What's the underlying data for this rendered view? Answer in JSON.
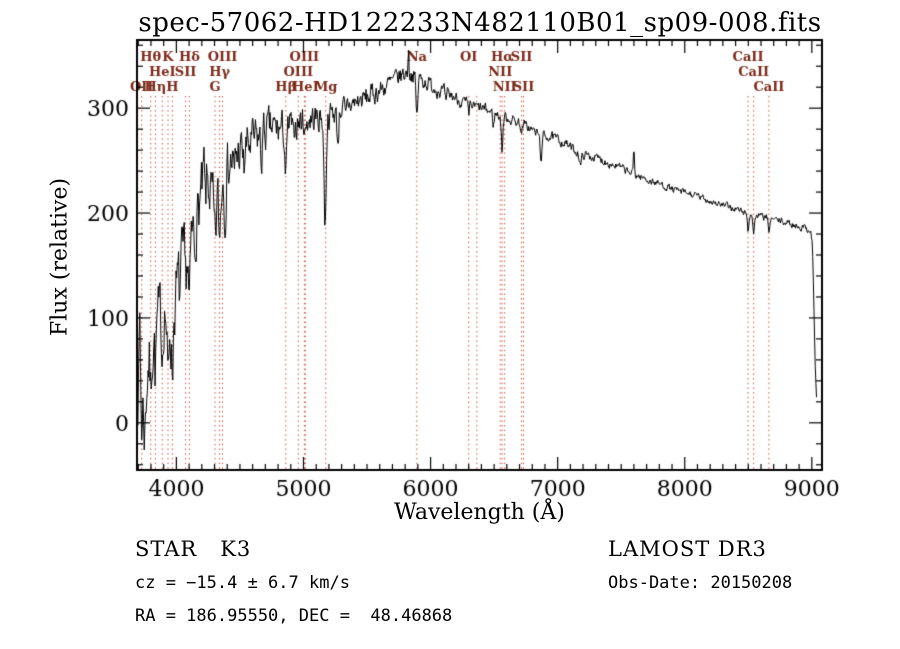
{
  "title": "spec-57062-HD122233N482110B01_sp09-008.fits",
  "footer": {
    "class_label": "STAR   K3",
    "cz": "cz = −15.4 ± 6.7 km/s",
    "radec": "RA = 186.95550, DEC =  48.46868",
    "survey": "LAMOST DR3",
    "obs_date": "Obs-Date: 20150208"
  },
  "chart_data": {
    "type": "line",
    "title": "spec-57062-HD122233N482110B01_sp09-008.fits",
    "xlabel": "Wavelength (Å)",
    "ylabel": "Flux (relative)",
    "xlim": [
      3690,
      9080
    ],
    "ylim": [
      -45,
      365
    ],
    "x_ticks": [
      4000,
      5000,
      6000,
      7000,
      8000,
      9000
    ],
    "y_ticks": [
      0,
      100,
      200,
      300
    ],
    "x_minor_step": 100,
    "y_minor_step": 20,
    "grid": false,
    "legend": "none",
    "line_color": "#000000",
    "marker_line_color": "#cc5544",
    "marker_label_color": "#7b2a1a",
    "noise_seed": 7,
    "spectrum_range": [
      3692,
      9038,
      5
    ],
    "continuum_anchors": [
      [
        3690,
        25
      ],
      [
        3710,
        45
      ],
      [
        3730,
        20
      ],
      [
        3755,
        10
      ],
      [
        3775,
        55
      ],
      [
        3800,
        65
      ],
      [
        3825,
        85
      ],
      [
        3850,
        95
      ],
      [
        3875,
        100
      ],
      [
        3900,
        110
      ],
      [
        3925,
        105
      ],
      [
        3955,
        100
      ],
      [
        3985,
        115
      ],
      [
        4010,
        130
      ],
      [
        4040,
        150
      ],
      [
        4070,
        155
      ],
      [
        4100,
        165
      ],
      [
        4130,
        180
      ],
      [
        4160,
        195
      ],
      [
        4190,
        215
      ],
      [
        4220,
        228
      ],
      [
        4250,
        228
      ],
      [
        4280,
        215
      ],
      [
        4310,
        215
      ],
      [
        4340,
        225
      ],
      [
        4370,
        235
      ],
      [
        4400,
        245
      ],
      [
        4450,
        252
      ],
      [
        4500,
        258
      ],
      [
        4550,
        262
      ],
      [
        4600,
        268
      ],
      [
        4650,
        272
      ],
      [
        4700,
        278
      ],
      [
        4750,
        280
      ],
      [
        4800,
        280
      ],
      [
        4860,
        278
      ],
      [
        4900,
        283
      ],
      [
        4950,
        286
      ],
      [
        5000,
        289
      ],
      [
        5060,
        290
      ],
      [
        5120,
        291
      ],
      [
        5180,
        292
      ],
      [
        5240,
        296
      ],
      [
        5300,
        300
      ],
      [
        5360,
        303
      ],
      [
        5420,
        306
      ],
      [
        5480,
        309
      ],
      [
        5540,
        313
      ],
      [
        5600,
        317
      ],
      [
        5660,
        322
      ],
      [
        5720,
        327
      ],
      [
        5780,
        332
      ],
      [
        5830,
        334
      ],
      [
        5890,
        330
      ],
      [
        5950,
        326
      ],
      [
        6000,
        322
      ],
      [
        6060,
        318
      ],
      [
        6120,
        314
      ],
      [
        6180,
        311
      ],
      [
        6240,
        307
      ],
      [
        6300,
        303
      ],
      [
        6360,
        301
      ],
      [
        6420,
        299
      ],
      [
        6480,
        296
      ],
      [
        6540,
        293
      ],
      [
        6600,
        291
      ],
      [
        6660,
        288
      ],
      [
        6720,
        285
      ],
      [
        6780,
        281
      ],
      [
        6840,
        276
      ],
      [
        6900,
        274
      ],
      [
        6960,
        272
      ],
      [
        7020,
        269
      ],
      [
        7080,
        265
      ],
      [
        7140,
        259
      ],
      [
        7200,
        256
      ],
      [
        7260,
        254
      ],
      [
        7320,
        252
      ],
      [
        7380,
        249
      ],
      [
        7440,
        246
      ],
      [
        7500,
        243
      ],
      [
        7560,
        239
      ],
      [
        7620,
        236
      ],
      [
        7680,
        233
      ],
      [
        7740,
        230
      ],
      [
        7800,
        228
      ],
      [
        7860,
        225
      ],
      [
        7920,
        222
      ],
      [
        7980,
        220
      ],
      [
        8040,
        218
      ],
      [
        8100,
        216
      ],
      [
        8160,
        213
      ],
      [
        8220,
        211
      ],
      [
        8280,
        208
      ],
      [
        8340,
        206
      ],
      [
        8400,
        204
      ],
      [
        8460,
        201
      ],
      [
        8520,
        198
      ],
      [
        8580,
        197
      ],
      [
        8640,
        196
      ],
      [
        8700,
        194
      ],
      [
        8760,
        192
      ],
      [
        8820,
        190
      ],
      [
        8880,
        188
      ],
      [
        8940,
        186
      ],
      [
        8990,
        184
      ],
      [
        9005,
        170
      ],
      [
        9015,
        120
      ],
      [
        9025,
        60
      ],
      [
        9035,
        25
      ]
    ],
    "noise_anchors": [
      [
        3690,
        26
      ],
      [
        3800,
        28
      ],
      [
        3950,
        30
      ],
      [
        4100,
        26
      ],
      [
        4300,
        24
      ],
      [
        4500,
        20
      ],
      [
        4700,
        17
      ],
      [
        4900,
        14
      ],
      [
        5100,
        12
      ],
      [
        5300,
        10
      ],
      [
        5500,
        9
      ],
      [
        5700,
        8
      ],
      [
        5900,
        7
      ],
      [
        6100,
        6
      ],
      [
        6300,
        5
      ],
      [
        6600,
        4.5
      ],
      [
        7000,
        4
      ],
      [
        7400,
        3.5
      ],
      [
        7800,
        3
      ],
      [
        8200,
        3
      ],
      [
        8600,
        3
      ],
      [
        9000,
        3
      ]
    ],
    "absorption_dips": [
      [
        3727,
        25,
        5
      ],
      [
        3750,
        20,
        5
      ],
      [
        3798,
        35,
        5
      ],
      [
        3835,
        40,
        5
      ],
      [
        3889,
        35,
        5
      ],
      [
        3934,
        70,
        7
      ],
      [
        3968,
        55,
        7
      ],
      [
        4026,
        20,
        5
      ],
      [
        4072,
        25,
        5
      ],
      [
        4102,
        55,
        7
      ],
      [
        4144,
        20,
        5
      ],
      [
        4226,
        25,
        5
      ],
      [
        4304,
        45,
        9
      ],
      [
        4340,
        50,
        7
      ],
      [
        4383,
        35,
        6
      ],
      [
        4455,
        22,
        5
      ],
      [
        4531,
        20,
        5
      ],
      [
        4668,
        25,
        6
      ],
      [
        4861,
        42,
        7
      ],
      [
        4920,
        18,
        5
      ],
      [
        5015,
        15,
        5
      ],
      [
        5170,
        105,
        8
      ],
      [
        5270,
        30,
        7
      ],
      [
        5332,
        15,
        5
      ],
      [
        5892,
        38,
        7
      ],
      [
        6122,
        12,
        5
      ],
      [
        6300,
        12,
        5
      ],
      [
        6495,
        12,
        5
      ],
      [
        6563,
        32,
        6
      ],
      [
        6717,
        10,
        5
      ],
      [
        6870,
        22,
        8
      ],
      [
        7180,
        12,
        8
      ],
      [
        8498,
        16,
        5
      ],
      [
        8542,
        20,
        5
      ],
      [
        8662,
        18,
        5
      ]
    ],
    "emission_spikes": [
      [
        3712,
        55,
        4
      ],
      [
        4218,
        18,
        4
      ],
      [
        5825,
        20,
        4
      ],
      [
        7600,
        24,
        4
      ]
    ],
    "spectral_lines": [
      {
        "wavelength": 3727,
        "label": "OII",
        "row": 3
      },
      {
        "wavelength": 3798,
        "label": "Hθ",
        "row": 1
      },
      {
        "wavelength": 3835,
        "label": "Hη",
        "row": 3
      },
      {
        "wavelength": 3889,
        "label": "HeI",
        "row": 2
      },
      {
        "wavelength": 3934,
        "label": "K",
        "row": 1
      },
      {
        "wavelength": 3968,
        "label": "H",
        "row": 3
      },
      {
        "wavelength": 4072,
        "label": "SII",
        "row": 2
      },
      {
        "wavelength": 4102,
        "label": "Hδ",
        "row": 1
      },
      {
        "wavelength": 4304,
        "label": "G",
        "row": 3
      },
      {
        "wavelength": 4340,
        "label": "Hγ",
        "row": 2
      },
      {
        "wavelength": 4363,
        "label": "OIII",
        "row": 1
      },
      {
        "wavelength": 4861,
        "label": "Hβ",
        "row": 3
      },
      {
        "wavelength": 4959,
        "label": "OIII",
        "row": 2
      },
      {
        "wavelength": 5007,
        "label": "OIII",
        "row": 1
      },
      {
        "wavelength": 5015,
        "label": "HeI",
        "row": 3
      },
      {
        "wavelength": 5175,
        "label": "Mg",
        "row": 3
      },
      {
        "wavelength": 5892,
        "label": "Na",
        "row": 1
      },
      {
        "wavelength": 6300,
        "label": "OI",
        "row": 1
      },
      {
        "wavelength": 6364,
        "label": "",
        "row": 1
      },
      {
        "wavelength": 6548,
        "label": "NII",
        "row": 2
      },
      {
        "wavelength": 6563,
        "label": "Hα",
        "row": 1
      },
      {
        "wavelength": 6583,
        "label": "NII",
        "row": 3
      },
      {
        "wavelength": 6716,
        "label": "SII",
        "row": 1
      },
      {
        "wavelength": 6731,
        "label": "SII",
        "row": 3
      },
      {
        "wavelength": 8498,
        "label": "CaII",
        "row": 1
      },
      {
        "wavelength": 8542,
        "label": "CaII",
        "row": 2
      },
      {
        "wavelength": 8662,
        "label": "CaII",
        "row": 3
      }
    ]
  }
}
